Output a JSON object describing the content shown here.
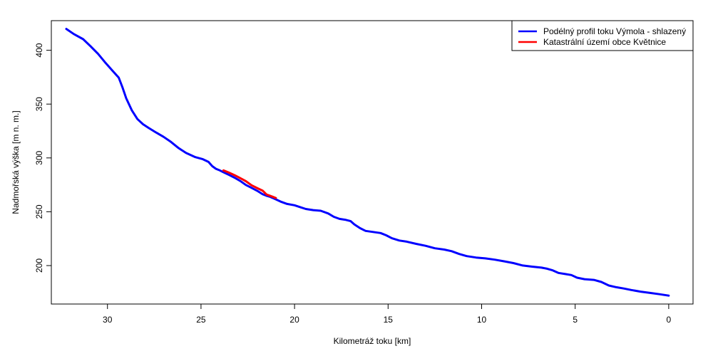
{
  "chart_data": {
    "type": "line",
    "title": "",
    "xlabel": "Kilometráž toku [km]",
    "ylabel": "Nadmořská výška [m n. m.]",
    "xlim": [
      33.0,
      -1.3
    ],
    "ylim": [
      164.3,
      427.5
    ],
    "x_reversed": true,
    "grid": false,
    "legend_position": "top-right",
    "x_ticks": [
      30,
      25,
      20,
      15,
      10,
      5,
      0
    ],
    "y_ticks": [
      200,
      250,
      300,
      350,
      400
    ],
    "series": [
      {
        "name": "Podélný profil toku Výmola - shlazený",
        "color": "#0000ff",
        "x": [
          32.2,
          31.8,
          31.3,
          30.9,
          30.5,
          30.1,
          29.7,
          29.4,
          29.2,
          29.0,
          28.7,
          28.4,
          28.1,
          27.8,
          27.4,
          27.0,
          26.6,
          26.2,
          25.8,
          25.3,
          24.9,
          24.6,
          24.4,
          24.2,
          24.0,
          23.8,
          23.5,
          23.2,
          22.9,
          22.6,
          22.3,
          22.0,
          21.7,
          21.5,
          21.3,
          21.0,
          20.7,
          20.4,
          20.0,
          19.7,
          19.4,
          19.0,
          18.6,
          18.2,
          17.9,
          17.6,
          17.3,
          17.0,
          16.8,
          16.5,
          16.2,
          15.8,
          15.4,
          15.1,
          14.8,
          14.4,
          14.0,
          13.5,
          13.0,
          12.5,
          12.0,
          11.6,
          11.2,
          10.8,
          10.3,
          9.8,
          9.3,
          8.8,
          8.3,
          7.8,
          7.3,
          6.8,
          6.5,
          6.2,
          5.9,
          5.5,
          5.2,
          4.9,
          4.5,
          4.0,
          3.6,
          3.2,
          2.8,
          2.4,
          2.0,
          1.5,
          1.0,
          0.5,
          0.0
        ],
        "values": [
          419.8,
          415.1,
          410.3,
          403.6,
          396.6,
          388.2,
          380.4,
          374.6,
          365.7,
          355.4,
          344.3,
          336.1,
          331.3,
          327.9,
          323.6,
          319.6,
          314.8,
          309.2,
          304.6,
          300.7,
          298.8,
          296.3,
          292.3,
          289.9,
          288.4,
          286.7,
          284.2,
          281.6,
          278.6,
          274.9,
          272.2,
          269.5,
          266.2,
          264.9,
          263.8,
          261.5,
          259.1,
          257.3,
          256.0,
          254.3,
          252.6,
          251.5,
          250.9,
          248.4,
          245.3,
          243.4,
          242.6,
          241.3,
          238.2,
          234.8,
          232.2,
          231.2,
          230.2,
          228.1,
          225.4,
          223.3,
          222.2,
          220.2,
          218.4,
          216.1,
          214.9,
          213.4,
          210.8,
          208.8,
          207.5,
          206.7,
          205.5,
          204.0,
          202.3,
          200.1,
          199.0,
          198.1,
          197.1,
          195.6,
          193.2,
          192.1,
          191.2,
          188.8,
          187.4,
          186.7,
          184.8,
          181.5,
          179.9,
          178.7,
          177.3,
          175.8,
          174.6,
          173.4,
          172.1
        ]
      },
      {
        "name": "Katastrální území obce Květnice",
        "color": "#ff0000",
        "x": [
          23.8,
          23.5,
          23.2,
          22.9,
          22.6,
          22.3,
          22.0,
          21.7,
          21.5,
          21.3,
          21.0
        ],
        "values": [
          288.4,
          286.3,
          283.9,
          281.2,
          278.4,
          274.6,
          272.0,
          269.5,
          266.1,
          264.8,
          262.8
        ]
      }
    ]
  }
}
